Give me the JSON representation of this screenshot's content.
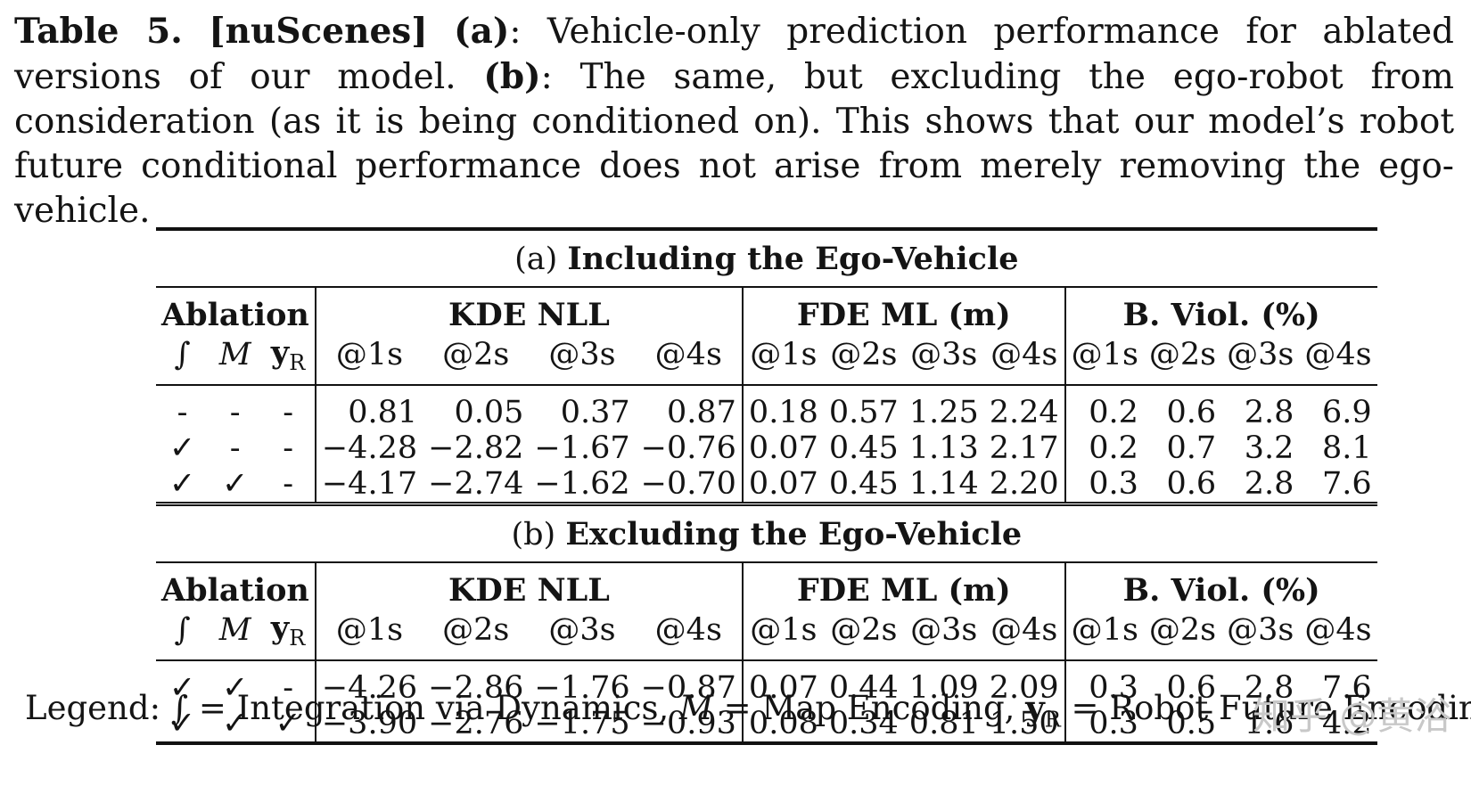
{
  "caption": {
    "label": "Table 5.",
    "dataset": "[nuScenes]",
    "part_a": "(a)",
    "text_a": ": Vehicle-only prediction performance for ablated versions of our model. ",
    "part_b": "(b)",
    "text_b": ": The same, but excluding the ego-robot from consideration (as it is being conditioned on). This shows that our model’s robot future conditional performance does not arise from merely removing the ego-vehicle."
  },
  "sections": [
    {
      "prefix": "(a)",
      "title": "Including the Ego-Vehicle",
      "rows": [
        {
          "abl": [
            "-",
            "-",
            "-"
          ],
          "kde": [
            "0.81",
            "0.05",
            "0.37",
            "0.87"
          ],
          "fde": [
            "0.18",
            "0.57",
            "1.25",
            "2.24"
          ],
          "bviol": [
            "0.2",
            "0.6",
            "2.8",
            "6.9"
          ]
        },
        {
          "abl": [
            "✓",
            "-",
            "-"
          ],
          "kde": [
            "−4.28",
            "−2.82",
            "−1.67",
            "−0.76"
          ],
          "fde": [
            "0.07",
            "0.45",
            "1.13",
            "2.17"
          ],
          "bviol": [
            "0.2",
            "0.7",
            "3.2",
            "8.1"
          ]
        },
        {
          "abl": [
            "✓",
            "✓",
            "-"
          ],
          "kde": [
            "−4.17",
            "−2.74",
            "−1.62",
            "−0.70"
          ],
          "fde": [
            "0.07",
            "0.45",
            "1.14",
            "2.20"
          ],
          "bviol": [
            "0.3",
            "0.6",
            "2.8",
            "7.6"
          ]
        }
      ]
    },
    {
      "prefix": "(b)",
      "title": "Excluding the Ego-Vehicle",
      "rows": [
        {
          "abl": [
            "✓",
            "✓",
            "-"
          ],
          "kde": [
            "−4.26",
            "−2.86",
            "−1.76",
            "−0.87"
          ],
          "fde": [
            "0.07",
            "0.44",
            "1.09",
            "2.09"
          ],
          "bviol": [
            "0.3",
            "0.6",
            "2.8",
            "7.6"
          ]
        },
        {
          "abl": [
            "✓",
            "✓",
            "✓"
          ],
          "kde": [
            "−3.90",
            "−2.76",
            "−1.75",
            "−0.93"
          ],
          "fde": [
            "0.08",
            "0.34",
            "0.81",
            "1.50"
          ],
          "bviol": [
            "0.3",
            "0.5",
            "1.6",
            "4.2"
          ]
        }
      ]
    }
  ],
  "header": {
    "ablation": "Ablation",
    "abl_cols": [
      "∫",
      "M",
      "y",
      "R"
    ],
    "kde": "KDE NLL",
    "fde": "FDE ML (m)",
    "bviol": "B. Viol. (%)",
    "horizons": [
      "@1s",
      "@2s",
      "@3s",
      "@4s"
    ]
  },
  "legend": {
    "prefix": "Legend: ",
    "int_sym": "∫",
    "int_desc": " = Integration via Dynamics, ",
    "map_sym": "M",
    "map_desc": " = Map Encoding, ",
    "robot_sym": "y",
    "robot_sub": "R",
    "robot_desc": " = Robot Future Encoding"
  },
  "watermark": "知乎 @黄浴"
}
